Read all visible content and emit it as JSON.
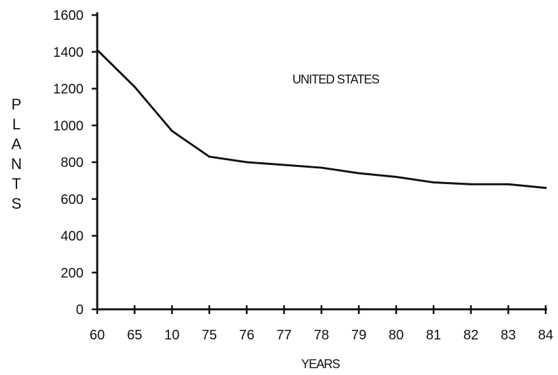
{
  "chart_data": {
    "type": "line",
    "title": "",
    "annotation": "UNITED STATES",
    "xlabel": "YEARS",
    "ylabel": "PLANTS",
    "categories": [
      "60",
      "65",
      "10",
      "75",
      "76",
      "77",
      "78",
      "79",
      "80",
      "81",
      "82",
      "83",
      "84"
    ],
    "series": [
      {
        "values": [
          1410,
          1210,
          970,
          830,
          800,
          785,
          770,
          740,
          720,
          690,
          680,
          680,
          660
        ]
      }
    ],
    "yticks": [
      0,
      200,
      400,
      600,
      800,
      1000,
      1200,
      1400,
      1600
    ],
    "ylim": [
      0,
      1600
    ],
    "grid": false,
    "legend": "none",
    "line_color": "#111111"
  }
}
